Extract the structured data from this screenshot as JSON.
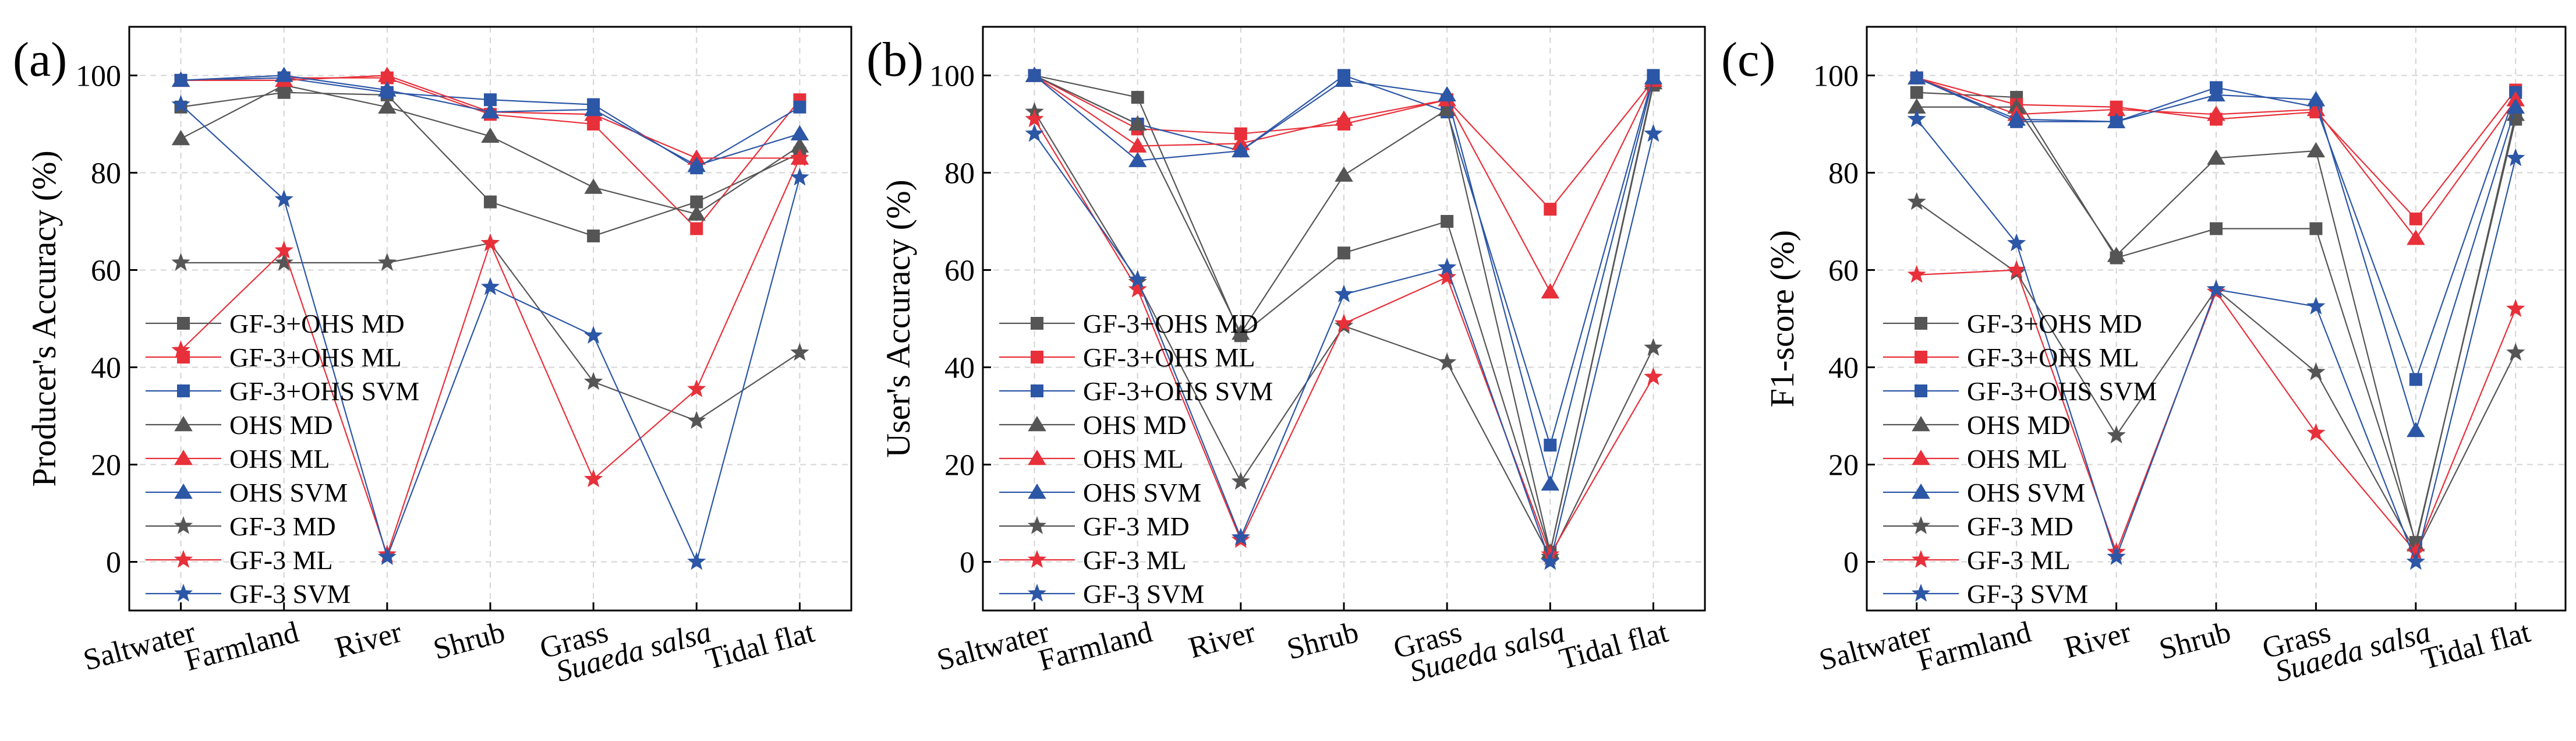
{
  "chart_data": [
    {
      "type": "line",
      "panel_label": "(a)",
      "ylabel": "Producer's Accuracy (%)",
      "xlabel": "",
      "ylim": [
        -10,
        110
      ],
      "yticks": [
        0,
        20,
        40,
        60,
        80,
        100
      ],
      "grid": true,
      "legend_position": "left",
      "categories": [
        "Saltwater",
        "Farmland",
        "River",
        "Shrub",
        "Grass",
        "Suaeda salsa",
        "Tidal flat"
      ],
      "series": [
        {
          "name": "GF-3+OHS MD",
          "values": [
            93.5,
            96.5,
            96.0,
            74.0,
            67.0,
            74.0,
            84.0
          ]
        },
        {
          "name": "GF-3+OHS ML",
          "values": [
            99.0,
            99.5,
            99.5,
            92.0,
            90.0,
            68.5,
            95.0
          ]
        },
        {
          "name": "GF-3+OHS SVM",
          "values": [
            99.0,
            99.5,
            96.5,
            95.0,
            94.0,
            81.0,
            93.5
          ]
        },
        {
          "name": "OHS MD",
          "values": [
            87.0,
            98.0,
            93.5,
            87.5,
            77.0,
            71.5,
            85.5
          ]
        },
        {
          "name": "OHS ML",
          "values": [
            99.0,
            99.0,
            100.0,
            92.5,
            92.0,
            83.0,
            83.0
          ]
        },
        {
          "name": "OHS SVM",
          "values": [
            99.0,
            100.0,
            97.0,
            92.5,
            93.0,
            81.5,
            88.0
          ]
        },
        {
          "name": "GF-3 MD",
          "values": [
            61.5,
            61.5,
            61.5,
            65.5,
            37.0,
            29.0,
            43.0
          ]
        },
        {
          "name": "GF-3 ML",
          "values": [
            43.5,
            64.0,
            1.5,
            65.5,
            17.0,
            35.5,
            83.0
          ]
        },
        {
          "name": "GF-3 SVM",
          "values": [
            94.0,
            74.5,
            1.0,
            56.5,
            46.5,
            0.0,
            79.0
          ]
        }
      ]
    },
    {
      "type": "line",
      "panel_label": "(b)",
      "ylabel": "User's Accuracy (%)",
      "xlabel": "",
      "ylim": [
        -10,
        110
      ],
      "yticks": [
        0,
        20,
        40,
        60,
        80,
        100
      ],
      "grid": true,
      "legend_position": "left",
      "categories": [
        "Saltwater",
        "Farmland",
        "River",
        "Shrub",
        "Grass",
        "Suaeda salsa",
        "Tidal flat"
      ],
      "series": [
        {
          "name": "GF-3+OHS MD",
          "values": [
            100.0,
            95.5,
            46.5,
            63.5,
            70.0,
            2.0,
            98.0
          ]
        },
        {
          "name": "GF-3+OHS ML",
          "values": [
            100.0,
            89.0,
            88.0,
            90.0,
            95.0,
            72.5,
            99.0
          ]
        },
        {
          "name": "GF-3+OHS SVM",
          "values": [
            100.0,
            90.0,
            84.5,
            100.0,
            92.5,
            24.0,
            100.0
          ]
        },
        {
          "name": "OHS MD",
          "values": [
            100.0,
            90.0,
            47.0,
            79.5,
            93.0,
            2.0,
            98.5
          ]
        },
        {
          "name": "OHS ML",
          "values": [
            100.0,
            85.5,
            86.0,
            91.0,
            95.0,
            55.5,
            99.0
          ]
        },
        {
          "name": "OHS SVM",
          "values": [
            100.0,
            82.5,
            84.5,
            99.0,
            96.0,
            16.0,
            99.5
          ]
        },
        {
          "name": "GF-3 MD",
          "values": [
            92.5,
            57.5,
            16.5,
            48.5,
            41.0,
            1.0,
            44.0
          ]
        },
        {
          "name": "GF-3 ML",
          "values": [
            91.0,
            56.0,
            4.5,
            49.0,
            58.5,
            1.5,
            38.0
          ]
        },
        {
          "name": "GF-3 SVM",
          "values": [
            88.0,
            58.0,
            5.0,
            55.0,
            60.5,
            0.0,
            88.0
          ]
        }
      ]
    },
    {
      "type": "line",
      "panel_label": "(c)",
      "ylabel": "F1-score (%)",
      "xlabel": "",
      "ylim": [
        -10,
        110
      ],
      "yticks": [
        0,
        20,
        40,
        60,
        80,
        100
      ],
      "grid": true,
      "legend_position": "left",
      "categories": [
        "Saltwater",
        "Farmland",
        "River",
        "Shrub",
        "Grass",
        "Suaeda salsa",
        "Tidal flat"
      ],
      "series": [
        {
          "name": "GF-3+OHS MD",
          "values": [
            96.5,
            95.5,
            62.5,
            68.5,
            68.5,
            4.0,
            91.0
          ]
        },
        {
          "name": "GF-3+OHS ML",
          "values": [
            99.5,
            94.0,
            93.5,
            91.0,
            92.5,
            70.5,
            97.0
          ]
        },
        {
          "name": "GF-3+OHS SVM",
          "values": [
            99.5,
            90.5,
            90.5,
            97.5,
            93.5,
            37.5,
            96.5
          ]
        },
        {
          "name": "OHS MD",
          "values": [
            93.5,
            93.5,
            63.0,
            83.0,
            84.5,
            3.5,
            92.0
          ]
        },
        {
          "name": "OHS ML",
          "values": [
            99.5,
            92.0,
            93.0,
            92.0,
            93.0,
            66.5,
            95.0
          ]
        },
        {
          "name": "OHS SVM",
          "values": [
            99.5,
            91.0,
            90.5,
            96.0,
            95.0,
            27.0,
            93.5
          ]
        },
        {
          "name": "GF-3 MD",
          "values": [
            74.0,
            59.5,
            26.0,
            56.0,
            39.0,
            2.0,
            43.0
          ]
        },
        {
          "name": "GF-3 ML",
          "values": [
            59.0,
            60.0,
            2.0,
            55.5,
            26.5,
            2.0,
            52.0
          ]
        },
        {
          "name": "GF-3 SVM",
          "values": [
            91.0,
            65.5,
            1.0,
            56.0,
            52.5,
            0.0,
            83.0
          ]
        }
      ]
    }
  ],
  "series_styles": [
    {
      "color": "#555555",
      "marker": "square"
    },
    {
      "color": "#e8303a",
      "marker": "square"
    },
    {
      "color": "#2c56a6",
      "marker": "square"
    },
    {
      "color": "#555555",
      "marker": "triangle"
    },
    {
      "color": "#e8303a",
      "marker": "triangle"
    },
    {
      "color": "#2c56a6",
      "marker": "triangle"
    },
    {
      "color": "#555555",
      "marker": "star"
    },
    {
      "color": "#e8303a",
      "marker": "star"
    },
    {
      "color": "#2c56a6",
      "marker": "star"
    }
  ]
}
